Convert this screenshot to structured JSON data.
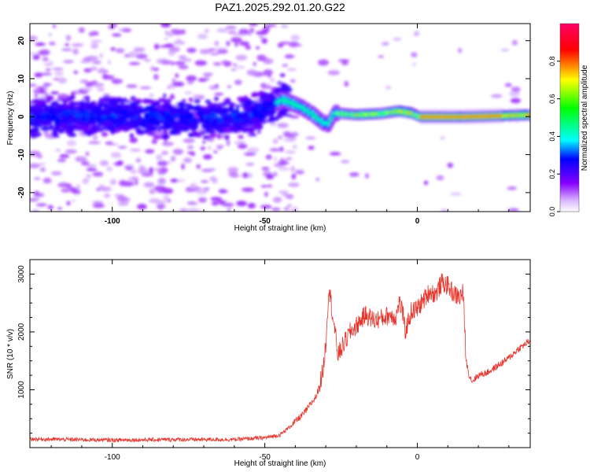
{
  "title": "PAZ1.2025.292.01.20.G22",
  "chart_data": [
    {
      "type": "heatmap",
      "name": "spectrogram",
      "xlabel": "Height of straight line (km)",
      "ylabel": "Frequency (Hz)",
      "xlim": [
        -127,
        37
      ],
      "ylim": [
        -25,
        24.5
      ],
      "x_ticks": [
        -100,
        -50,
        0
      ],
      "x_tick_labels": [
        "-100",
        "-50",
        "0"
      ],
      "y_ticks": [
        -20,
        -10,
        0,
        10,
        20
      ],
      "y_tick_labels": [
        "-20",
        "-10",
        "0",
        "10",
        "20"
      ],
      "signal_track": [
        {
          "x": -127,
          "y": 0.0
        },
        {
          "x": -110,
          "y": 0.3
        },
        {
          "x": -90,
          "y": 0.0
        },
        {
          "x": -70,
          "y": -0.5
        },
        {
          "x": -55,
          "y": 0.3
        },
        {
          "x": -44,
          "y": 4.5
        },
        {
          "x": -38,
          "y": 2.5
        },
        {
          "x": -34,
          "y": 0.5
        },
        {
          "x": -31,
          "y": -1.5
        },
        {
          "x": -29,
          "y": -2.0
        },
        {
          "x": -27,
          "y": 1.0
        },
        {
          "x": -20,
          "y": 0.5
        },
        {
          "x": -12,
          "y": 0.8
        },
        {
          "x": -6,
          "y": 1.5
        },
        {
          "x": -2,
          "y": 1.0
        },
        {
          "x": 1,
          "y": 0.0
        },
        {
          "x": 15,
          "y": 0.0
        },
        {
          "x": 25,
          "y": 0.2
        },
        {
          "x": 37,
          "y": 0.5
        }
      ]
    },
    {
      "type": "colorbar",
      "name": "colorbar",
      "label": "Normalized spectral amplitude",
      "range": [
        0.0,
        1.0
      ],
      "ticks": [
        0.0,
        0.2,
        0.4,
        0.6,
        0.8
      ],
      "tick_labels": [
        "0.0",
        "0.2",
        "0.4",
        "0.6",
        "0.8"
      ]
    },
    {
      "type": "line",
      "name": "snr",
      "xlabel": "Height of straight line (km)",
      "ylabel": "SNR (10 * v/v)",
      "color": "#e8342a",
      "xlim": [
        -127,
        37
      ],
      "ylim": [
        0,
        3250
      ],
      "x_ticks": [
        -100,
        -50,
        0
      ],
      "x_tick_labels": [
        "-100",
        "-50",
        "0"
      ],
      "y_ticks": [
        1000,
        2000,
        3000
      ],
      "y_tick_labels": [
        "1000",
        "2000",
        "3000"
      ],
      "x": [
        -127,
        -115,
        -100,
        -80,
        -60,
        -50,
        -45,
        -42,
        -40,
        -37,
        -35,
        -33,
        -31,
        -30,
        -29,
        -28,
        -26,
        -24,
        -22,
        -20,
        -17,
        -14,
        -11,
        -9,
        -7,
        -6,
        -5,
        -4,
        -2,
        0,
        2,
        4,
        6,
        8,
        10,
        12,
        14,
        15,
        16,
        17,
        18,
        20,
        23,
        26,
        30,
        33,
        37
      ],
      "y": [
        150,
        140,
        130,
        140,
        140,
        170,
        220,
        350,
        450,
        600,
        750,
        900,
        1300,
        1800,
        2800,
        2400,
        1600,
        1800,
        2000,
        2100,
        2300,
        2200,
        2250,
        2300,
        2250,
        2500,
        2400,
        2000,
        2350,
        2400,
        2550,
        2700,
        2650,
        2850,
        2800,
        2650,
        2600,
        2700,
        1500,
        1250,
        1150,
        1250,
        1300,
        1400,
        1550,
        1700,
        1850
      ]
    }
  ]
}
